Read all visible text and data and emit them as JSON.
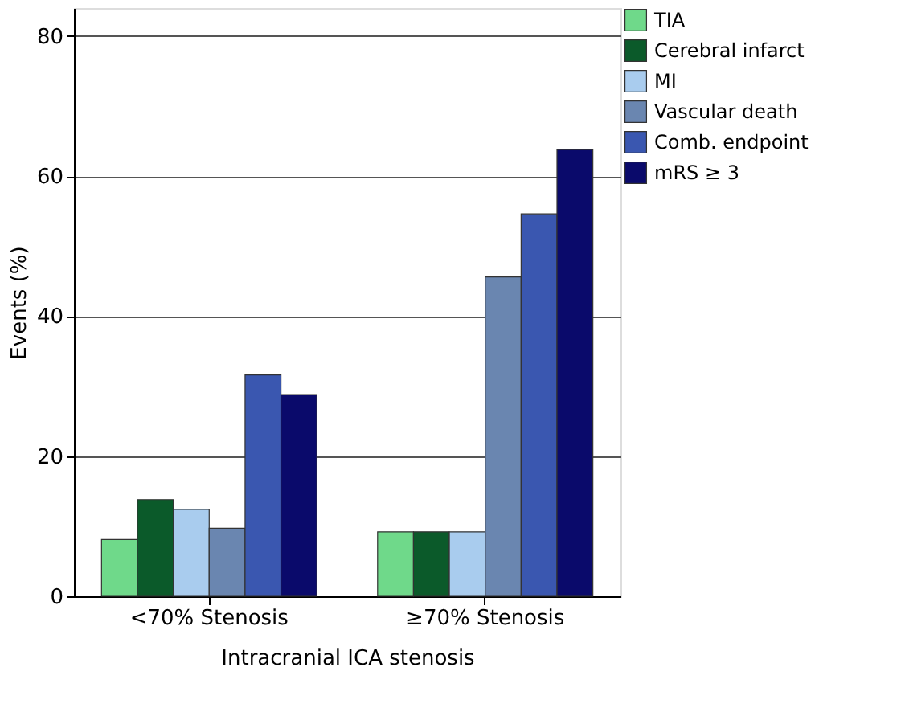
{
  "chart_data": {
    "type": "bar",
    "xlabel": "Intracranial ICA stenosis",
    "ylabel": "Events (%)",
    "categories": [
      "<70% Stenosis",
      "≥70% Stenosis"
    ],
    "series": [
      {
        "name": "TIA",
        "color": "#6fd98a",
        "values": [
          8.1,
          9.2
        ]
      },
      {
        "name": "Cerebral infarct",
        "color": "#0b5a2a",
        "values": [
          13.8,
          9.2
        ]
      },
      {
        "name": "MI",
        "color": "#a9ccee",
        "values": [
          12.4,
          9.2
        ]
      },
      {
        "name": "Vascular death",
        "color": "#6a86b0",
        "values": [
          9.7,
          45.6
        ]
      },
      {
        "name": "Comb. endpoint",
        "color": "#3a57b0",
        "values": [
          31.6,
          54.6
        ]
      },
      {
        "name": "mRS ≥ 3",
        "color": "#0a0a6b",
        "values": [
          28.8,
          63.8
        ]
      }
    ],
    "ylim": [
      0,
      84
    ],
    "yticks": [
      0,
      20,
      40,
      60,
      80
    ],
    "grid": "y",
    "legend": "top right"
  }
}
